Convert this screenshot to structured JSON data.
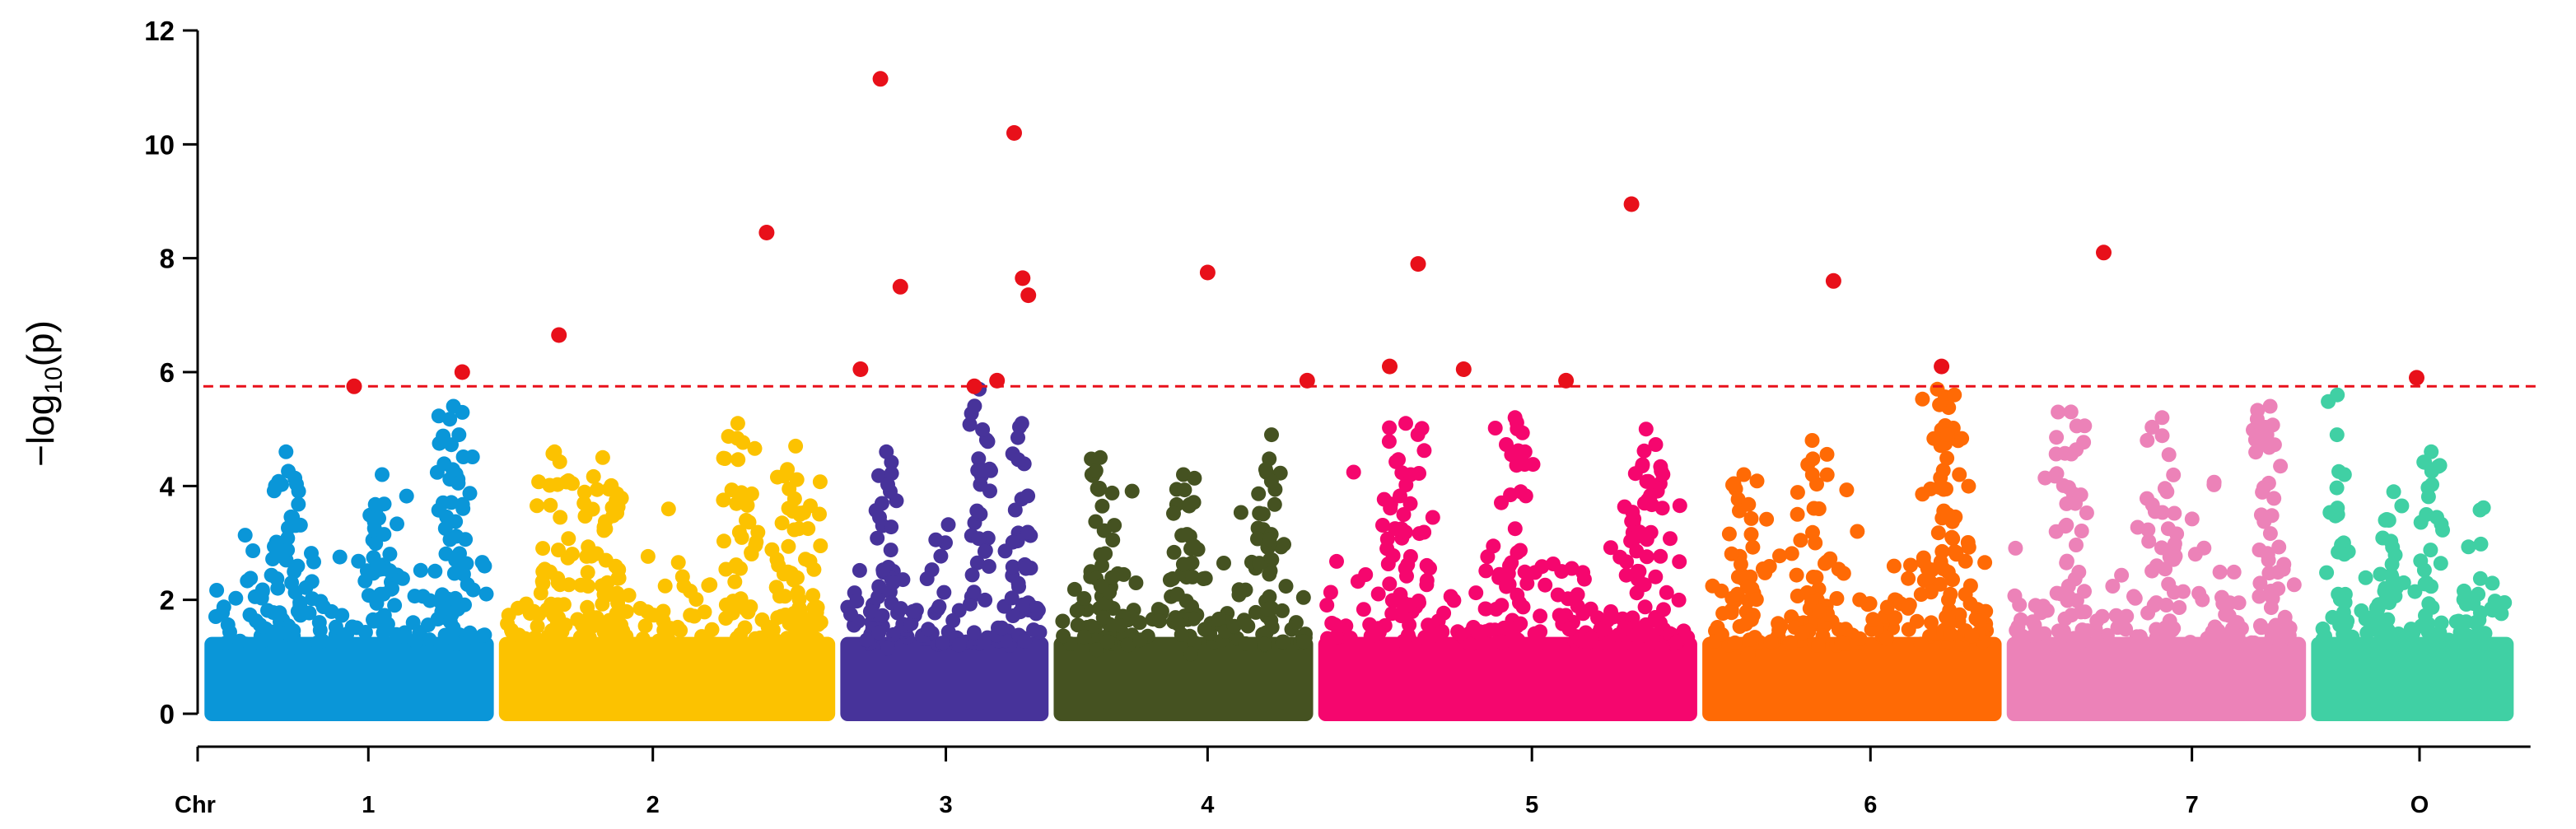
{
  "chart_data": {
    "type": "scatter",
    "subtype": "manhattan",
    "title": "",
    "xlabel": "Chr",
    "ylabel": "−log10(p)",
    "ylabel_main": "−log",
    "ylabel_sub": "10",
    "ylabel_tail": "(p)",
    "ylim": [
      0,
      12
    ],
    "yticks": [
      "0",
      "2",
      "4",
      "6",
      "8",
      "10",
      "12"
    ],
    "grid": false,
    "legend": "none",
    "threshold": 5.75,
    "threshold_color": "#e8101a",
    "significant_color": "#e8101a",
    "chromosomes": [
      {
        "label": "1",
        "color": "#0a96d8",
        "span": [
          0.0,
          1.0
        ],
        "tick": 0.55,
        "max": 5.3,
        "peaks": [
          {
            "at": 0.27,
            "h": 4.6
          },
          {
            "at": 0.62,
            "h": 4.2
          },
          {
            "at": 0.88,
            "h": 5.4
          },
          {
            "at": 0.9,
            "h": 4.9
          }
        ]
      },
      {
        "label": "2",
        "color": "#fcc200",
        "span": [
          1.0,
          2.2
        ],
        "tick": 1.55,
        "max": 5.0,
        "peaks": [
          {
            "at": 0.15,
            "h": 4.6
          },
          {
            "at": 0.3,
            "h": 4.5
          },
          {
            "at": 0.72,
            "h": 5.1
          },
          {
            "at": 0.9,
            "h": 4.7
          }
        ]
      },
      {
        "label": "3",
        "color": "#47339a",
        "span": [
          2.2,
          2.95
        ],
        "tick": 2.58,
        "max": 5.6,
        "peaks": [
          {
            "at": 0.2,
            "h": 4.6
          },
          {
            "at": 0.68,
            "h": 5.7
          },
          {
            "at": 0.9,
            "h": 5.1
          }
        ]
      },
      {
        "label": "4",
        "color": "#455221",
        "span": [
          2.95,
          3.88
        ],
        "tick": 3.5,
        "max": 4.5,
        "peaks": [
          {
            "at": 0.16,
            "h": 4.5
          },
          {
            "at": 0.5,
            "h": 4.2
          },
          {
            "at": 0.86,
            "h": 4.9
          }
        ]
      },
      {
        "label": "5",
        "color": "#f5066e",
        "span": [
          3.88,
          5.23
        ],
        "tick": 4.64,
        "max": 5.2,
        "peaks": [
          {
            "at": 0.22,
            "h": 5.1
          },
          {
            "at": 0.52,
            "h": 5.2
          },
          {
            "at": 0.88,
            "h": 5.0
          }
        ]
      },
      {
        "label": "6",
        "color": "#ff6a05",
        "span": [
          5.23,
          6.3
        ],
        "tick": 5.83,
        "max": 5.6,
        "peaks": [
          {
            "at": 0.12,
            "h": 4.2
          },
          {
            "at": 0.36,
            "h": 4.8
          },
          {
            "at": 0.8,
            "h": 5.7
          },
          {
            "at": 0.86,
            "h": 5.6
          }
        ]
      },
      {
        "label": "7",
        "color": "#ec82b8",
        "span": [
          6.3,
          7.37
        ],
        "tick": 6.96,
        "max": 5.4,
        "peaks": [
          {
            "at": 0.2,
            "h": 5.3
          },
          {
            "at": 0.52,
            "h": 5.2
          },
          {
            "at": 0.9,
            "h": 5.4
          }
        ]
      },
      {
        "label": "O",
        "color": "#40d0a4",
        "span": [
          7.37,
          8.1
        ],
        "tick": 7.76,
        "max": 5.5,
        "peaks": [
          {
            "at": 0.1,
            "h": 5.6
          },
          {
            "at": 0.4,
            "h": 3.9
          },
          {
            "at": 0.6,
            "h": 4.6
          }
        ]
      }
    ],
    "significant_points": [
      {
        "x": 0.5,
        "y": 5.75
      },
      {
        "x": 0.88,
        "y": 6.0
      },
      {
        "x": 1.22,
        "y": 6.65
      },
      {
        "x": 1.95,
        "y": 8.45
      },
      {
        "x": 2.28,
        "y": 6.05
      },
      {
        "x": 2.35,
        "y": 11.15
      },
      {
        "x": 2.42,
        "y": 7.5
      },
      {
        "x": 2.68,
        "y": 5.75
      },
      {
        "x": 2.76,
        "y": 5.85
      },
      {
        "x": 2.82,
        "y": 10.2
      },
      {
        "x": 2.85,
        "y": 7.65
      },
      {
        "x": 2.87,
        "y": 7.35
      },
      {
        "x": 3.5,
        "y": 7.75
      },
      {
        "x": 3.85,
        "y": 5.85
      },
      {
        "x": 4.14,
        "y": 6.1
      },
      {
        "x": 4.24,
        "y": 7.9
      },
      {
        "x": 4.4,
        "y": 6.05
      },
      {
        "x": 4.76,
        "y": 5.85
      },
      {
        "x": 4.99,
        "y": 8.95
      },
      {
        "x": 5.7,
        "y": 7.6
      },
      {
        "x": 6.08,
        "y": 6.1
      },
      {
        "x": 6.65,
        "y": 8.1
      },
      {
        "x": 7.75,
        "y": 5.9
      }
    ],
    "xlim": [
      -0.05,
      8.2
    ]
  }
}
